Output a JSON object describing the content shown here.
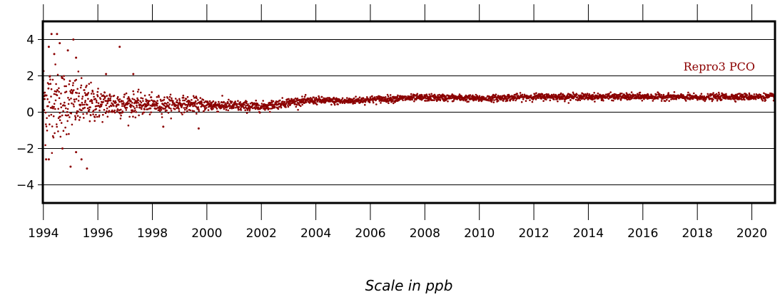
{
  "chart_data": {
    "type": "scatter",
    "xlabel": "",
    "ylabel": "",
    "caption": "Scale in ppb",
    "xlim": [
      1993.98,
      2020.85
    ],
    "ylim": [
      -5,
      5
    ],
    "grid": "horizontal",
    "x_ticks": [
      1994,
      1996,
      1998,
      2000,
      2002,
      2004,
      2006,
      2008,
      2010,
      2012,
      2014,
      2016,
      2018,
      2020
    ],
    "x_tick_labels": [
      "1994",
      "1996",
      "1998",
      "2000",
      "2002",
      "2004",
      "2006",
      "2008",
      "2010",
      "2012",
      "2014",
      "2016",
      "2018",
      "2020"
    ],
    "y_ticks": [
      -4,
      -2,
      0,
      2,
      4
    ],
    "y_tick_labels": [
      "−4",
      "−2",
      "0",
      "2",
      "4"
    ],
    "series": [
      {
        "name": "Repro3 PCO",
        "color": "#8b0000",
        "trend": {
          "x": [
            1994.0,
            1995.0,
            1996.0,
            1997.0,
            1998.0,
            1999.0,
            2000.0,
            2001.0,
            2002.0,
            2003.0,
            2004.0,
            2005.0,
            2006.0,
            2007.0,
            2008.0,
            2009.0,
            2010.0,
            2011.0,
            2012.0,
            2013.0,
            2014.0,
            2015.0,
            2016.0,
            2017.0,
            2018.0,
            2019.0,
            2020.0,
            2020.85
          ],
          "y": [
            0.6,
            0.5,
            0.45,
            0.45,
            0.4,
            0.45,
            0.4,
            0.35,
            0.3,
            0.55,
            0.65,
            0.6,
            0.7,
            0.75,
            0.8,
            0.8,
            0.75,
            0.8,
            0.85,
            0.85,
            0.85,
            0.85,
            0.85,
            0.85,
            0.8,
            0.85,
            0.85,
            0.85
          ]
        },
        "spread": {
          "x": [
            1994.0,
            1995.0,
            1996.0,
            1997.0,
            1998.0,
            1999.0,
            2000.0,
            2001.0,
            2002.0,
            2003.0,
            2004.0,
            2010.0,
            2020.85
          ],
          "y": [
            1.2,
            0.8,
            0.45,
            0.35,
            0.25,
            0.22,
            0.18,
            0.15,
            0.13,
            0.12,
            0.1,
            0.09,
            0.09
          ]
        },
        "outliers": [
          {
            "x": 1994.3,
            "y": 4.3
          },
          {
            "x": 1994.5,
            "y": 4.3
          },
          {
            "x": 1995.1,
            "y": 4.0
          },
          {
            "x": 1994.6,
            "y": 3.8
          },
          {
            "x": 1996.8,
            "y": 3.6
          },
          {
            "x": 1994.2,
            "y": 3.6
          },
          {
            "x": 1994.9,
            "y": 3.4
          },
          {
            "x": 1994.4,
            "y": 3.2
          },
          {
            "x": 1995.2,
            "y": 3.0
          },
          {
            "x": 1997.3,
            "y": 2.1
          },
          {
            "x": 1996.3,
            "y": 2.1
          },
          {
            "x": 1994.2,
            "y": -2.6
          },
          {
            "x": 1994.1,
            "y": -2.6
          },
          {
            "x": 1995.4,
            "y": -2.6
          },
          {
            "x": 1995.0,
            "y": -3.0
          },
          {
            "x": 1995.6,
            "y": -3.1
          },
          {
            "x": 1995.2,
            "y": -2.2
          },
          {
            "x": 1994.7,
            "y": -2.0
          },
          {
            "x": 1999.7,
            "y": -0.9
          },
          {
            "x": 1998.4,
            "y": -0.8
          }
        ]
      }
    ]
  }
}
